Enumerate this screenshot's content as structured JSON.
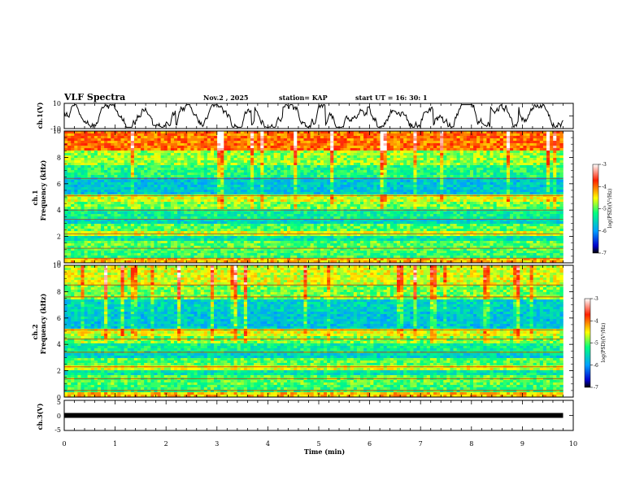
{
  "header": {
    "title": "VLF Spectra",
    "date": "Nov.2 , 2025",
    "station": "station= KAP",
    "start": "start UT = 16: 30: 1"
  },
  "chart_data": [
    {
      "type": "line",
      "name": "ch1-waveform",
      "ylabel": "ch.1(V)",
      "ylim": [
        -10,
        10
      ],
      "yticks": [
        "10",
        "-10"
      ],
      "xlim": [
        0,
        10
      ],
      "data_end_min": 9.8,
      "description_series": "signal amplitude vs time"
    },
    {
      "type": "heatmap",
      "name": "ch1-spectrogram",
      "ylabel_top": "ch.1",
      "ylabel": "Frequency (kHz)",
      "ylim": [
        0,
        10
      ],
      "yticks": [
        "0",
        "2",
        "4",
        "6",
        "8",
        "10"
      ],
      "xlim": [
        0,
        10
      ],
      "colorbar": {
        "label": "log(PSD)(V²/Hz)",
        "range": [
          -7,
          -3
        ],
        "ticks": [
          "-3",
          "-4",
          "-5",
          "-6",
          "-7"
        ]
      }
    },
    {
      "type": "heatmap",
      "name": "ch2-spectrogram",
      "ylabel_top": "ch.2",
      "ylabel": "Frequency (kHz)",
      "ylim": [
        0,
        10
      ],
      "yticks": [
        "0",
        "2",
        "4",
        "6",
        "8",
        "10"
      ],
      "xlim": [
        0,
        10
      ],
      "colorbar": {
        "label": "log(PSD)(V²/Hz)",
        "range": [
          -7,
          -3
        ],
        "ticks": [
          "-3",
          "-4",
          "-5",
          "-6",
          "-7"
        ]
      }
    },
    {
      "type": "line",
      "name": "ch3-level",
      "ylabel": "ch.3(V)",
      "ylim": [
        -5,
        5
      ],
      "yticks": [
        "5",
        "0",
        "-5"
      ],
      "xlim": [
        0,
        10
      ],
      "value": 0,
      "data_end_min": 9.8
    }
  ],
  "xaxis": {
    "label": "Time (min)",
    "ticks": [
      "0",
      "1",
      "2",
      "3",
      "4",
      "5",
      "6",
      "7",
      "8",
      "9",
      "10"
    ]
  }
}
